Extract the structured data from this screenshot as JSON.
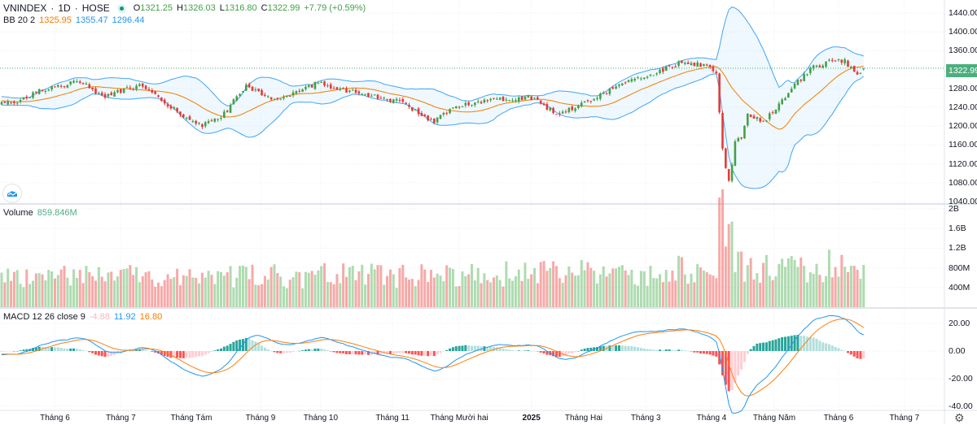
{
  "header": {
    "symbol": "VNINDEX",
    "interval": "1D",
    "exchange": "HOSE",
    "open_label": "O",
    "open": "1321.25",
    "high_label": "H",
    "high": "1326.03",
    "low_label": "L",
    "low": "1316.80",
    "close_label": "C",
    "close": "1322.99",
    "change": "+7.79 (+0.59%)"
  },
  "bb": {
    "label": "BB 20 2",
    "basis": "1325.95",
    "upper": "1355.47",
    "lower": "1296.44"
  },
  "volume": {
    "label": "Volume",
    "value": "859.846M"
  },
  "macd": {
    "label": "MACD 12 26 close 9",
    "hist": "-4.88",
    "macd": "11.92",
    "signal": "16.80"
  },
  "price_axis": {
    "ticks": [
      "1440.00",
      "1400.00",
      "1360.00",
      "1320.00",
      "1280.00",
      "1240.00",
      "1200.00",
      "1160.00",
      "1120.00",
      "1080.00",
      "1040.00"
    ],
    "last": "1322.99"
  },
  "volume_axis": {
    "ticks": [
      "2B",
      "1.6B",
      "1.2B",
      "800M",
      "400M"
    ]
  },
  "macd_axis": {
    "ticks": [
      "20.00",
      "0.00",
      "-20.00",
      "-40.00"
    ]
  },
  "colors": {
    "up": "#43a047",
    "down": "#e53935",
    "bb": "#42a5f5",
    "basis": "#f57c00",
    "macd": "#2196f3",
    "signal": "#ff7f0e"
  },
  "chart_data": {
    "type": "candlestick",
    "bars": 276,
    "close_anchors": [
      [
        -45,
        1250
      ],
      [
        -25,
        1265
      ],
      [
        -10,
        1255
      ],
      [
        0,
        1247
      ],
      [
        5,
        1252
      ],
      [
        13,
        1278
      ],
      [
        26,
        1295
      ],
      [
        32,
        1261
      ],
      [
        44,
        1287
      ],
      [
        55,
        1235
      ],
      [
        64,
        1200
      ],
      [
        71,
        1226
      ],
      [
        78,
        1287
      ],
      [
        88,
        1252
      ],
      [
        101,
        1292
      ],
      [
        114,
        1269
      ],
      [
        127,
        1252
      ],
      [
        138,
        1209
      ],
      [
        145,
        1243
      ],
      [
        156,
        1257
      ],
      [
        169,
        1261
      ],
      [
        177,
        1226
      ],
      [
        187,
        1252
      ],
      [
        197,
        1287
      ],
      [
        208,
        1312
      ],
      [
        216,
        1333
      ],
      [
        223,
        1330
      ],
      [
        228,
        1316
      ],
      [
        229,
        1226
      ],
      [
        230,
        1149
      ],
      [
        232,
        1080
      ],
      [
        234,
        1166
      ],
      [
        236,
        1175
      ],
      [
        238,
        1226
      ],
      [
        240,
        1218
      ],
      [
        243,
        1209
      ],
      [
        248,
        1243
      ],
      [
        253,
        1287
      ],
      [
        258,
        1321
      ],
      [
        264,
        1338
      ],
      [
        269,
        1338
      ],
      [
        273,
        1309
      ],
      [
        275,
        1323
      ]
    ],
    "volume_anchors_millions": [
      [
        0,
        600
      ],
      [
        100,
        640
      ],
      [
        200,
        700
      ],
      [
        228,
        800
      ],
      [
        229,
        1750
      ],
      [
        230,
        1900
      ],
      [
        231,
        1350
      ],
      [
        232,
        1800
      ],
      [
        233,
        1600
      ],
      [
        234,
        900
      ],
      [
        240,
        780
      ],
      [
        275,
        860
      ]
    ],
    "price_range": [
      1040,
      1440
    ],
    "volume_range_millions": [
      0,
      2000
    ],
    "macd_range": [
      -40,
      25
    ],
    "time_labels": [
      {
        "label": "Tháng 6",
        "bar": 17
      },
      {
        "label": "Tháng 7",
        "bar": 38
      },
      {
        "label": "Tháng Tám",
        "bar": 60.5
      },
      {
        "label": "Tháng 9",
        "bar": 82.6
      },
      {
        "label": "Tháng 10",
        "bar": 101.8
      },
      {
        "label": "Tháng 11",
        "bar": 124.7
      },
      {
        "label": "Tháng Mười hai",
        "bar": 146
      },
      {
        "label": "2025",
        "bar": 169,
        "bold": true
      },
      {
        "label": "Tháng Hai",
        "bar": 185.7
      },
      {
        "label": "Tháng 3",
        "bar": 205.5
      },
      {
        "label": "Tháng 4",
        "bar": 226.5
      },
      {
        "label": "Tháng Năm",
        "bar": 246.5
      },
      {
        "label": "Tháng 6",
        "bar": 267
      },
      {
        "label": "Tháng 7",
        "bar": 288
      }
    ]
  }
}
